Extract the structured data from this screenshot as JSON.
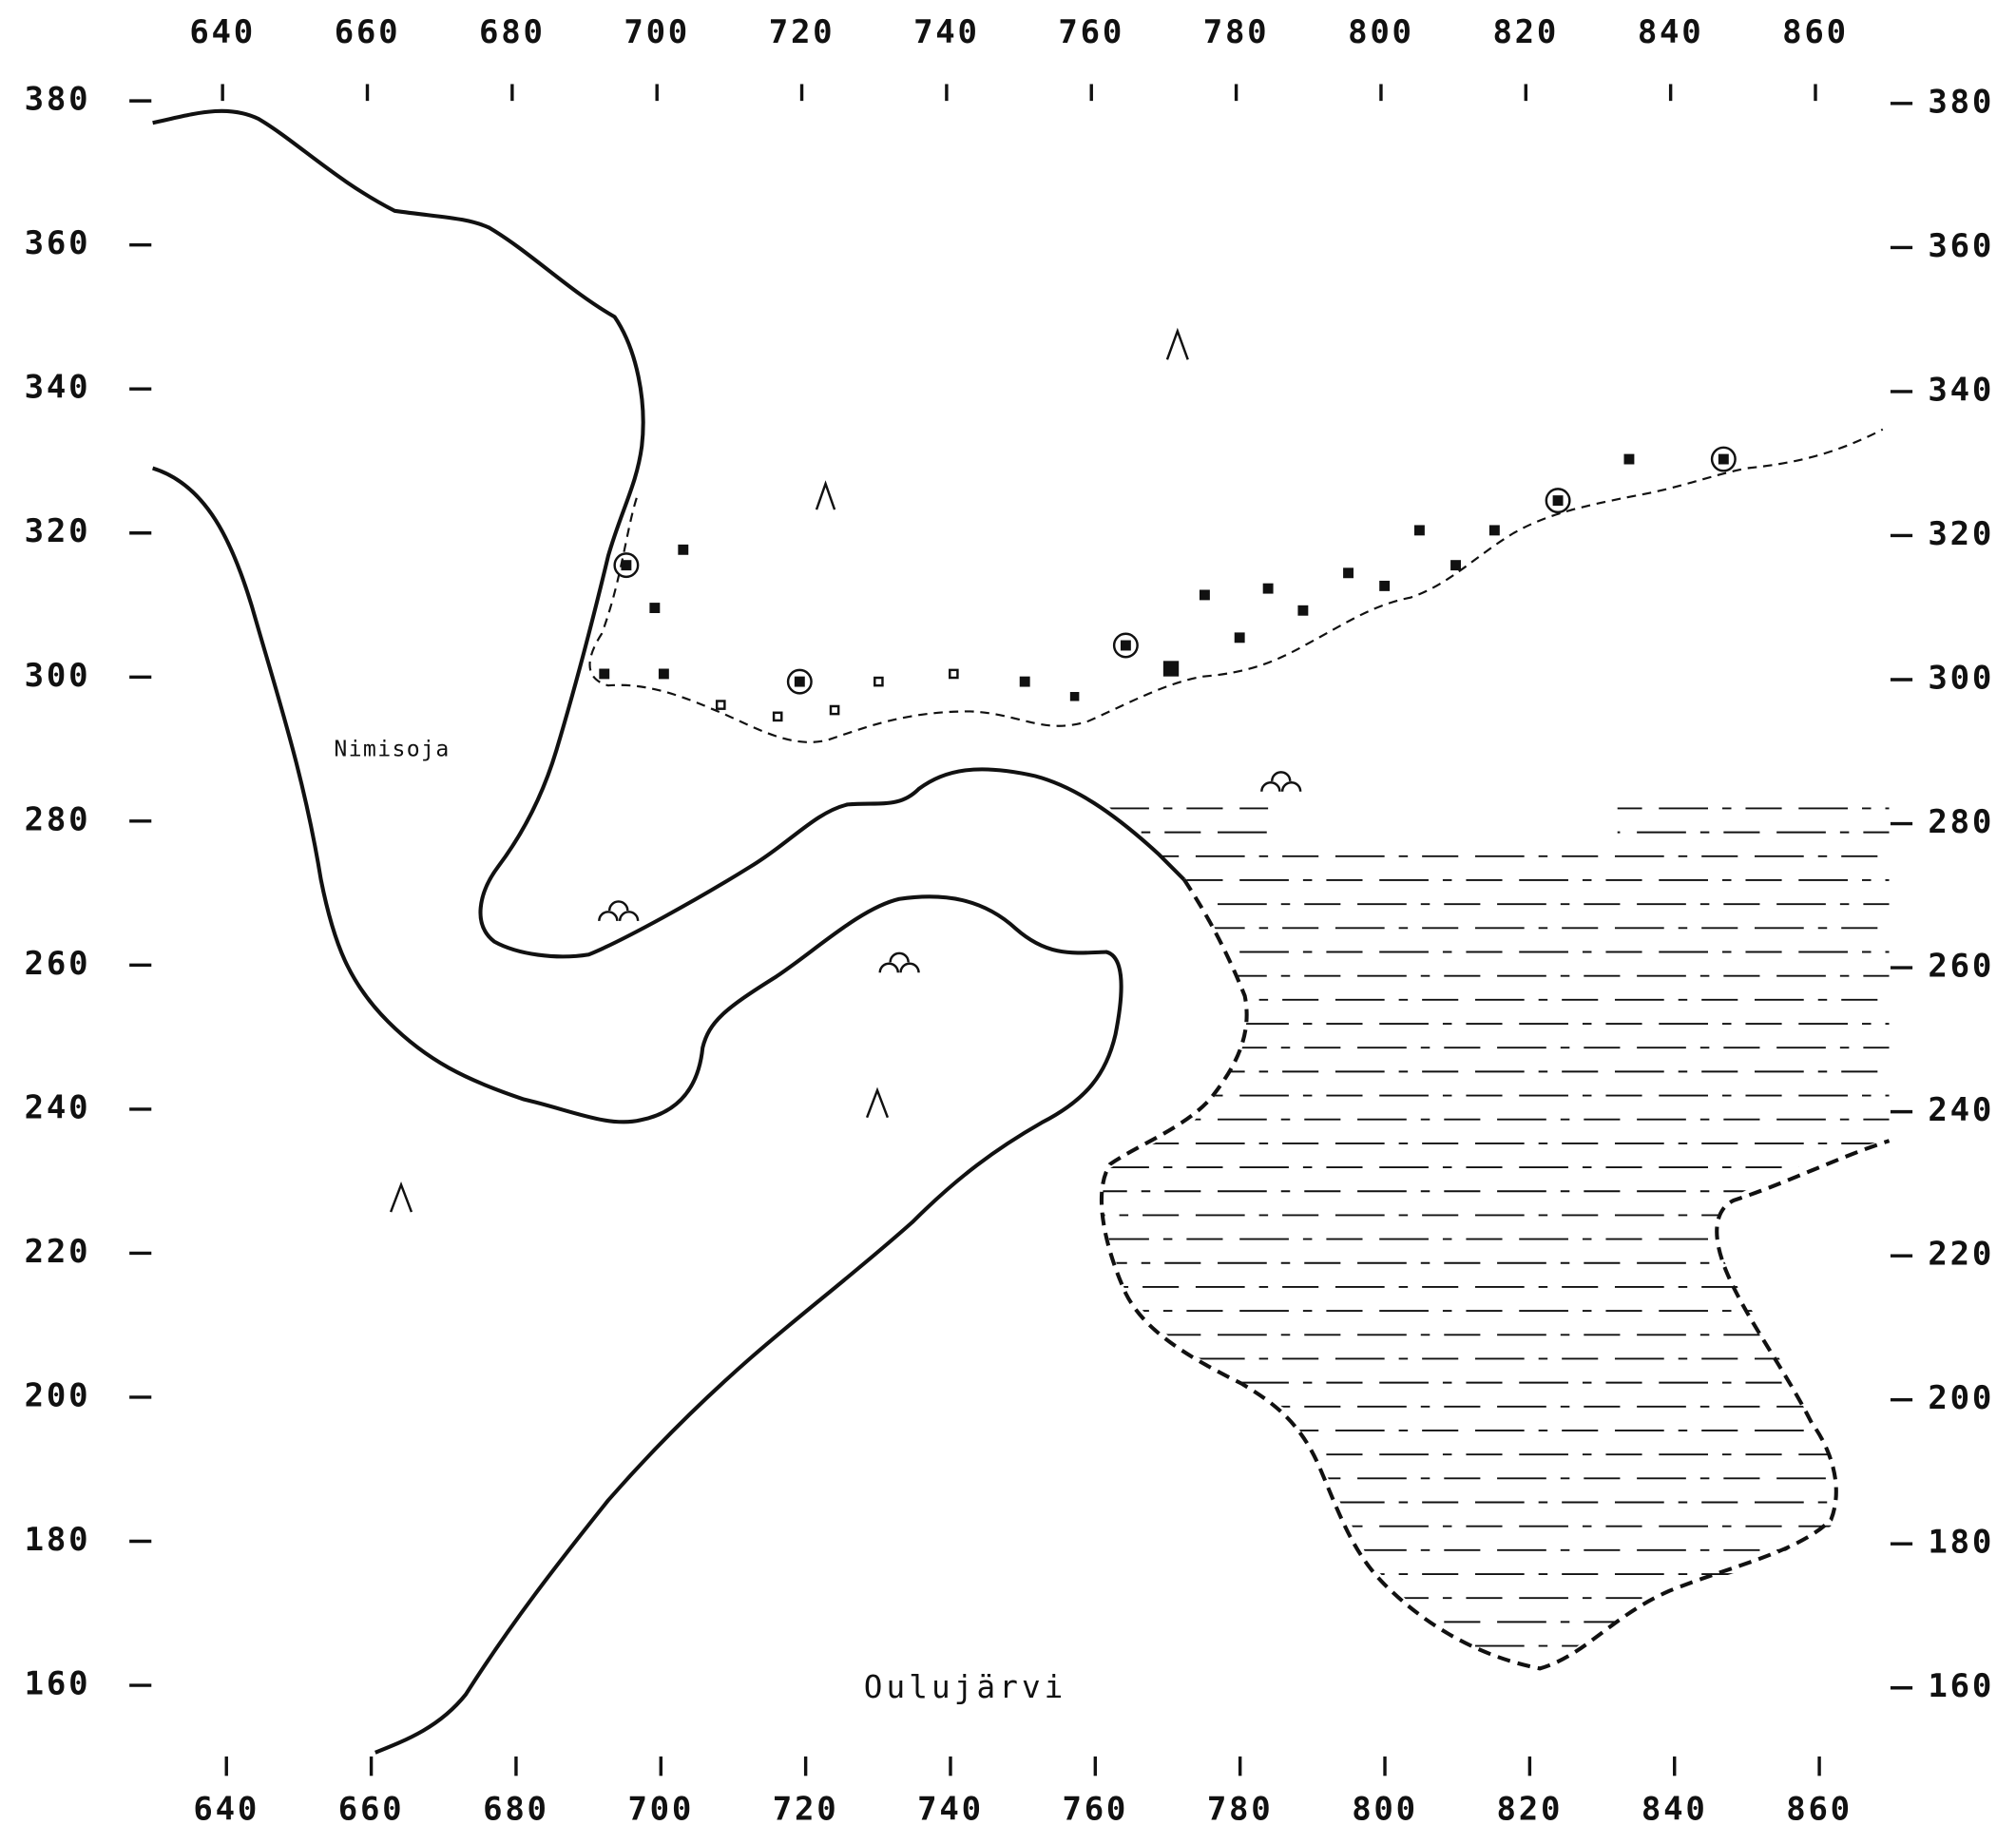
{
  "map": {
    "xticks": [
      640,
      660,
      680,
      700,
      720,
      740,
      760,
      780,
      800,
      820,
      840,
      860
    ],
    "yticks": [
      160,
      180,
      200,
      220,
      240,
      260,
      280,
      300,
      320,
      340,
      360,
      380
    ],
    "labels": {
      "river": "Nimisoja",
      "lake": "Oulujärvi"
    }
  }
}
